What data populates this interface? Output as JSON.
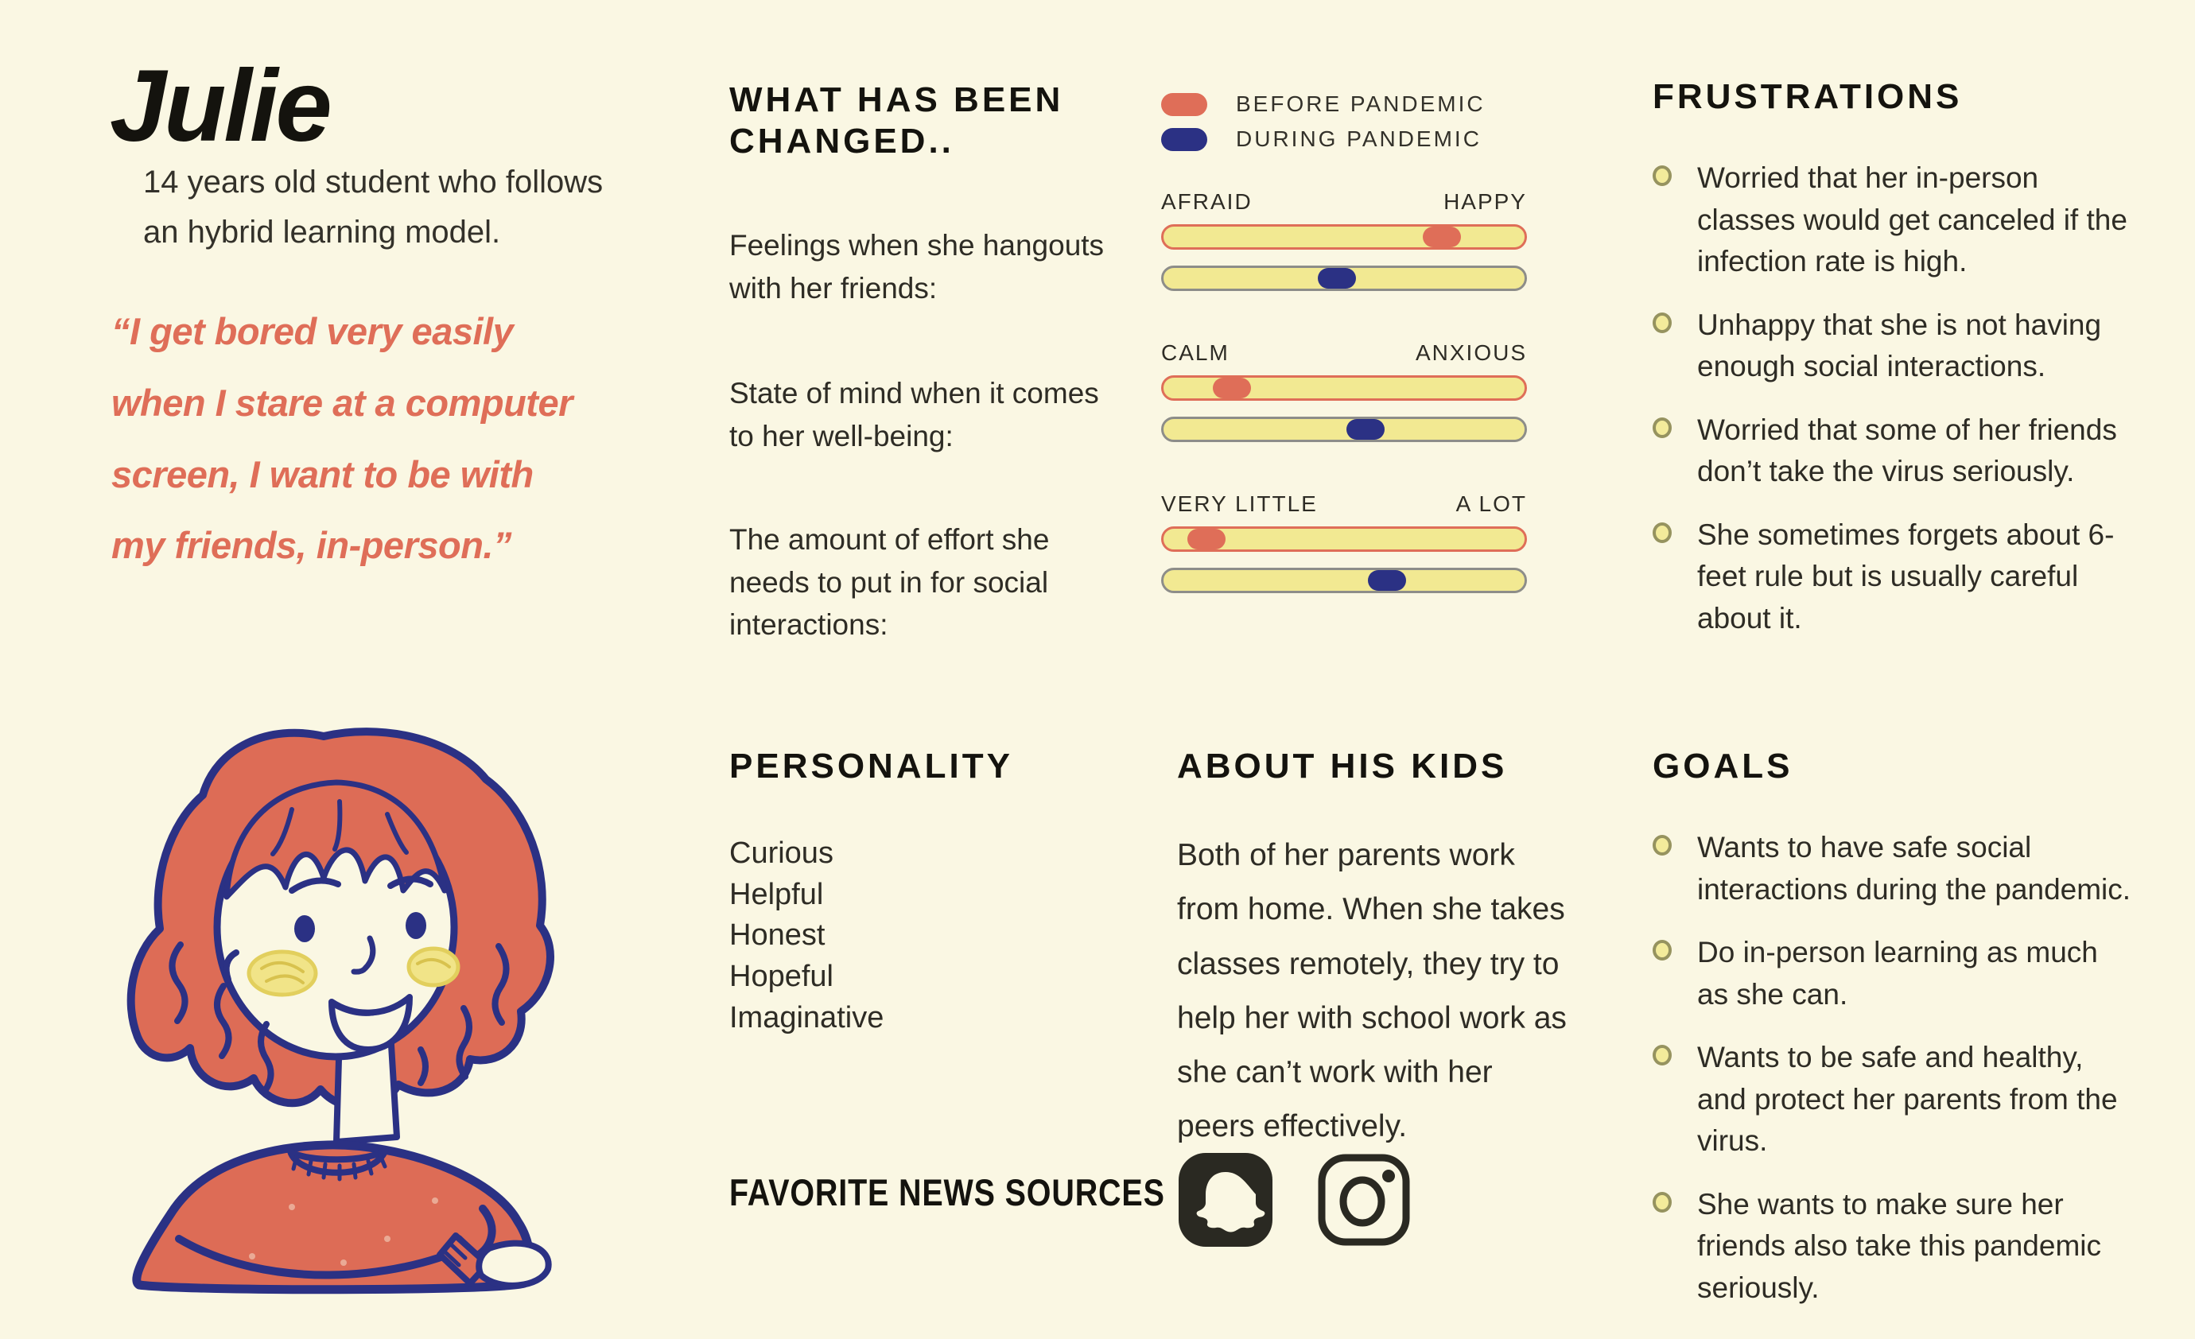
{
  "page": {
    "background": "#FAF7E3"
  },
  "colors": {
    "salmon": "#DF6E58",
    "navy": "#2B3184",
    "track_yellow": "#F2E992",
    "track_gray_border": "#8D8D89",
    "bullet_fill": "#F3EB9B",
    "bullet_stroke": "#96935F",
    "ink": "#14130E"
  },
  "profile": {
    "name": "Julie",
    "description": "14 years old student who follows an hybrid learning model.",
    "quote": "“I get bored very easily when I stare at a computer screen, I want to be with my friends, in-person.”",
    "portrait": "illustration of a smiling girl with wavy orange hair and a red sweater, arms crossed"
  },
  "changed": {
    "title": "WHAT HAS BEEN CHANGED..",
    "legend": [
      {
        "label": "BEFORE PANDEMIC",
        "color": "#DF6E58"
      },
      {
        "label": "DURING PANDEMIC",
        "color": "#2B3184"
      }
    ],
    "rows": [
      {
        "label": "Feelings when she hangouts with her friends:",
        "left": "AFRAID",
        "right": "HAPPY",
        "before_pct": 77,
        "during_pct": 48
      },
      {
        "label": "State of mind when it comes to her well-being:",
        "left": "CALM",
        "right": "ANXIOUS",
        "before_pct": 19,
        "during_pct": 56
      },
      {
        "label": "The amount of effort she needs to put in for social interactions:",
        "left": "VERY LITTLE",
        "right": "A LOT",
        "before_pct": 12,
        "during_pct": 62
      }
    ]
  },
  "chart_data": {
    "type": "table",
    "title": "WHAT HAS BEEN CHANGED..",
    "series": [
      {
        "name": "BEFORE PANDEMIC",
        "values": [
          77,
          19,
          12
        ]
      },
      {
        "name": "DURING PANDEMIC",
        "values": [
          48,
          56,
          62
        ]
      }
    ],
    "categories": [
      "AFRAID–HAPPY",
      "CALM–ANXIOUS",
      "VERY LITTLE–A LOT"
    ],
    "xlabel": "",
    "ylabel": "position on scale (0–100)",
    "ylim": [
      0,
      100
    ]
  },
  "personality": {
    "title": "PERSONALITY",
    "traits": [
      "Curious",
      "Helpful",
      "Honest",
      "Hopeful",
      "Imaginative"
    ]
  },
  "about": {
    "title": "ABOUT HIS KIDS",
    "text": "Both of her parents work from home. When she takes classes remotely, they try to help her with school work as she can’t work with her peers effectively."
  },
  "news": {
    "title": "FAVORITE NEWS SOURCES",
    "sources": [
      "Snapchat",
      "Instagram"
    ]
  },
  "frustrations": {
    "title": "FRUSTRATIONS",
    "items": [
      "Worried that her in-person classes would get canceled if the infection rate is high.",
      "Unhappy that she is not having enough social interactions.",
      "Worried that some of her friends don’t take the virus seriously.",
      "She sometimes forgets about 6-feet rule but is usually careful about it."
    ]
  },
  "goals": {
    "title": "GOALS",
    "items": [
      "Wants to have safe social interactions during the pandemic.",
      "Do in-person learning as much as she can.",
      "Wants to be safe and healthy, and protect her parents from the virus.",
      "She wants to make sure her friends also take this pandemic seriously."
    ]
  }
}
